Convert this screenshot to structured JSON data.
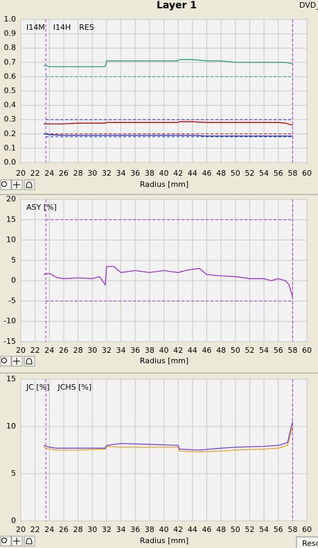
{
  "header": {
    "title": "Layer 1",
    "tab": "DVD_"
  },
  "footer": {
    "button": "Reso"
  },
  "chart_data": [
    {
      "type": "line",
      "x_label": "Radius [mm]",
      "legend": "upper left",
      "grid": true,
      "xlim": [
        20,
        60
      ],
      "xticks": [
        20,
        22,
        24,
        26,
        28,
        30,
        32,
        34,
        36,
        38,
        40,
        42,
        44,
        46,
        48,
        50,
        52,
        54,
        56,
        58,
        60
      ],
      "ylim": [
        0,
        1
      ],
      "yticks": [
        {
          "value": 0,
          "label": "0.0"
        },
        0.1,
        0.2,
        0.3,
        0.4,
        0.5,
        0.6,
        0.7,
        0.8,
        0.9,
        {
          "value": 1,
          "label": "1.0"
        }
      ],
      "x": [
        23.2,
        24,
        26,
        28,
        30,
        31.8,
        32,
        34,
        36,
        38,
        40,
        42,
        42.2,
        44,
        46,
        48,
        50,
        52,
        54,
        56,
        57,
        58
      ],
      "series": [
        {
          "name": "I14M",
          "color": "#2a9d7a",
          "values": [
            0.68,
            0.67,
            0.67,
            0.67,
            0.67,
            0.67,
            0.71,
            0.71,
            0.71,
            0.71,
            0.71,
            0.71,
            0.72,
            0.72,
            0.71,
            0.71,
            0.7,
            0.7,
            0.7,
            0.7,
            0.7,
            0.69
          ]
        },
        {
          "name": "I14H",
          "color": "#1a2fc8",
          "values": [
            0.2,
            0.195,
            0.19,
            0.19,
            0.19,
            0.19,
            0.19,
            0.19,
            0.19,
            0.19,
            0.19,
            0.19,
            0.19,
            0.19,
            0.185,
            0.185,
            0.185,
            0.185,
            0.185,
            0.185,
            0.185,
            0.185
          ]
        },
        {
          "name": "RES",
          "color": "#c00000",
          "values": [
            0.27,
            0.27,
            0.27,
            0.275,
            0.275,
            0.275,
            0.28,
            0.28,
            0.28,
            0.28,
            0.28,
            0.28,
            0.285,
            0.285,
            0.28,
            0.28,
            0.28,
            0.28,
            0.28,
            0.28,
            0.275,
            0.26
          ]
        }
      ],
      "hlines": [
        {
          "value": 0.6,
          "color": "#2a9d7a"
        },
        {
          "value": 0.3,
          "color": "#1a2fc8"
        },
        {
          "value": 0.2,
          "color": "#c00000"
        },
        {
          "value": 0.18,
          "color": "#1a2fc8"
        }
      ],
      "vlines": [
        23.5,
        58
      ],
      "vline_color": "#9933cc"
    },
    {
      "type": "line",
      "x_label": "Radius [mm]",
      "legend": "upper left",
      "grid": true,
      "xlim": [
        20,
        60
      ],
      "xticks": [
        20,
        22,
        24,
        26,
        28,
        30,
        32,
        34,
        36,
        38,
        40,
        42,
        44,
        46,
        48,
        50,
        52,
        54,
        56,
        58,
        60
      ],
      "ylim": [
        -15,
        20
      ],
      "yticks": [
        -15,
        -10,
        -5,
        0,
        5,
        10,
        15,
        20
      ],
      "x": [
        23.2,
        24,
        25,
        26,
        28,
        30,
        31,
        31.8,
        32,
        33,
        34,
        36,
        38,
        40,
        42,
        43,
        44,
        45,
        46,
        48,
        50,
        52,
        54,
        55,
        56,
        57,
        57.5,
        58
      ],
      "series": [
        {
          "name": "ASY [%]",
          "color": "#9933cc",
          "values": [
            1.5,
            1.8,
            0.8,
            0.5,
            0.7,
            0.5,
            1,
            -1,
            3.5,
            3.5,
            2,
            2.5,
            2,
            2.5,
            2,
            2.5,
            2.8,
            3,
            1.5,
            1.2,
            1,
            0.5,
            0.5,
            0,
            0.5,
            0,
            -1,
            -4
          ]
        }
      ],
      "hlines": [
        {
          "value": 15,
          "color": "#9933cc"
        },
        {
          "value": -5,
          "color": "#9933cc"
        }
      ],
      "vlines": [
        23.5,
        58
      ],
      "vline_color": "#9933cc"
    },
    {
      "type": "line",
      "x_label": "Radius [mm]",
      "legend": "upper left",
      "grid": true,
      "xlim": [
        20,
        60
      ],
      "xticks": [
        20,
        22,
        24,
        26,
        28,
        30,
        32,
        34,
        36,
        38,
        40,
        42,
        44,
        46,
        48,
        50,
        52,
        54,
        56,
        58,
        60
      ],
      "ylim": [
        0,
        15
      ],
      "yticks": [
        0,
        5,
        10,
        15
      ],
      "x": [
        23.2,
        24,
        25,
        28,
        31.8,
        32,
        34,
        38,
        42,
        42.2,
        45,
        48,
        50,
        54,
        56,
        57.3,
        58
      ],
      "series": [
        {
          "name": "JC [%]",
          "color": "#f0a020",
          "values": [
            7.8,
            7.6,
            7.5,
            7.5,
            7.6,
            7.9,
            7.8,
            7.8,
            7.8,
            7.4,
            7.3,
            7.4,
            7.5,
            7.6,
            7.7,
            8,
            10
          ]
        },
        {
          "name": "JCHS [%]",
          "color": "#7040e0",
          "values": [
            8,
            7.8,
            7.7,
            7.7,
            7.7,
            8,
            8.2,
            8.1,
            8,
            7.6,
            7.5,
            7.7,
            7.8,
            7.9,
            8,
            8.3,
            10.5
          ]
        }
      ],
      "hlines": [],
      "vlines": [
        23.5,
        58
      ],
      "vline_color": "#9933cc"
    }
  ]
}
